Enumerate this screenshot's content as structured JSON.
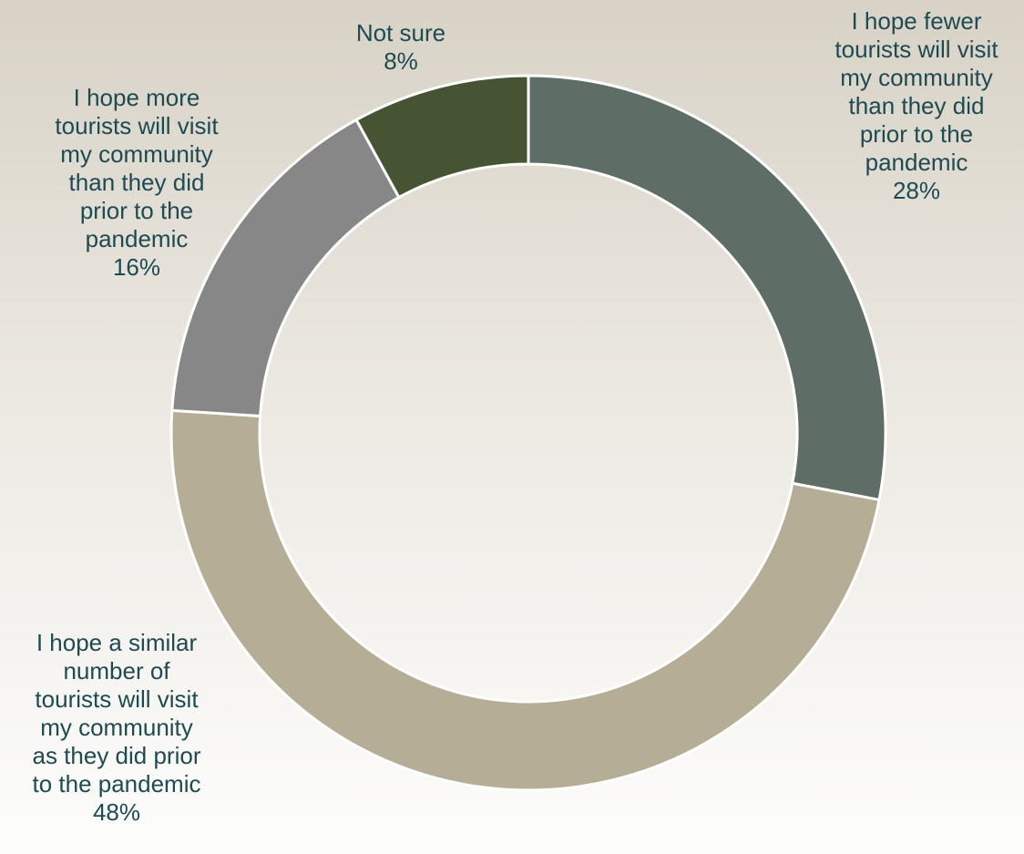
{
  "chart_data": {
    "type": "pie",
    "variant": "donut",
    "slices": [
      {
        "label_lines": [
          "I hope fewer",
          "tourists will visit",
          "my community",
          "than they did",
          "prior to the",
          "pandemic"
        ],
        "value": 28,
        "value_label": "28%",
        "color": "#5e6e66"
      },
      {
        "label_lines": [
          "I hope a similar",
          "number of",
          "tourists will visit",
          "my community",
          "as they did prior",
          "to the pandemic"
        ],
        "value": 48,
        "value_label": "48%",
        "color": "#b5ad96"
      },
      {
        "label_lines": [
          "I hope more",
          "tourists will visit",
          "my community",
          "than they did",
          "prior to the",
          "pandemic"
        ],
        "value": 16,
        "value_label": "16%",
        "color": "#878787"
      },
      {
        "label_lines": [
          "Not sure"
        ],
        "value": 8,
        "value_label": "8%",
        "color": "#465433"
      }
    ],
    "label_color": "#1e4a52",
    "legend": "none"
  }
}
